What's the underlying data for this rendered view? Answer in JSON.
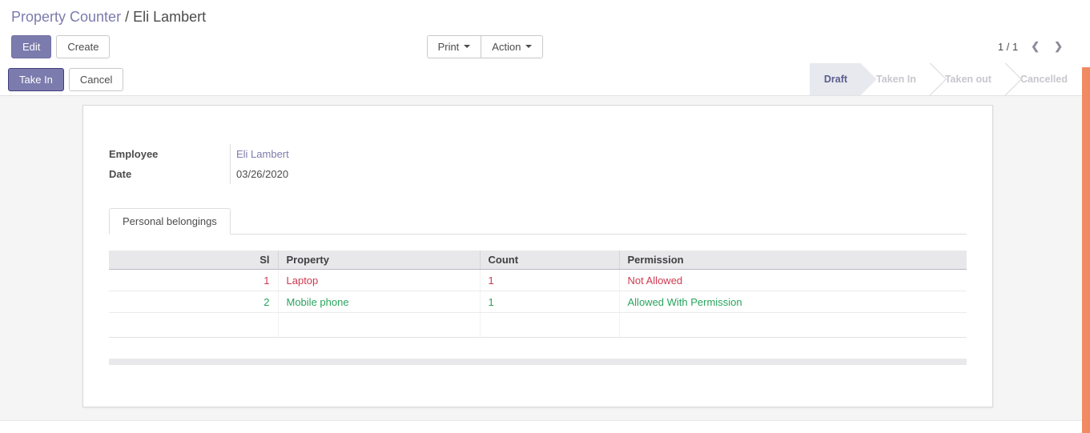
{
  "breadcrumb": {
    "parent": "Property Counter",
    "separator": "/",
    "current": "Eli Lambert"
  },
  "control_panel": {
    "edit_label": "Edit",
    "create_label": "Create",
    "print_label": "Print",
    "action_label": "Action",
    "pager": {
      "value": "1 / 1",
      "prev_icon": "❮",
      "next_icon": "❯"
    }
  },
  "statusbar": {
    "take_in_label": "Take In",
    "cancel_label": "Cancel",
    "states": [
      {
        "label": "Draft",
        "active": true
      },
      {
        "label": "Taken In",
        "active": false
      },
      {
        "label": "Taken out",
        "active": false
      },
      {
        "label": "Cancelled",
        "active": false
      }
    ]
  },
  "form": {
    "fields": {
      "employee": {
        "label": "Employee",
        "value": "Eli Lambert"
      },
      "date": {
        "label": "Date",
        "value": "03/26/2020"
      }
    },
    "tabs": [
      {
        "label": "Personal belongings",
        "active": true
      }
    ],
    "table": {
      "columns": [
        {
          "label": "Sl"
        },
        {
          "label": "Property"
        },
        {
          "label": "Count"
        },
        {
          "label": "Permission"
        }
      ],
      "rows": [
        {
          "sl": "1",
          "property": "Laptop",
          "count": "1",
          "permission": "Not Allowed",
          "color": "#ce3a50"
        },
        {
          "sl": "2",
          "property": "Mobile phone",
          "count": "1",
          "permission": "Allowed With Permission",
          "color": "#28a55c"
        }
      ]
    }
  },
  "colors": {
    "brand": "#7c7bad",
    "danger": "#ce3a50",
    "success": "#28a55c",
    "scrollbar": "#ef8a62"
  }
}
